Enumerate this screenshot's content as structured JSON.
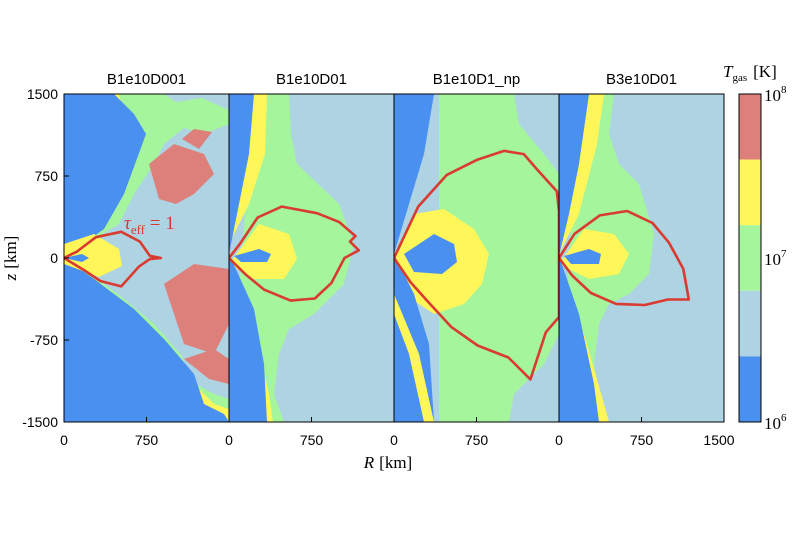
{
  "chart_data": {
    "type": "heatmap",
    "panels": [
      {
        "title": "B1e10D001",
        "tau_contour": [
          [
            0,
            0
          ],
          [
            120,
            60
          ],
          [
            290,
            190
          ],
          [
            520,
            240
          ],
          [
            690,
            150
          ],
          [
            780,
            20
          ],
          [
            880,
            0
          ],
          [
            780,
            -10
          ],
          [
            680,
            -80
          ],
          [
            520,
            -260
          ],
          [
            330,
            -210
          ],
          [
            180,
            -110
          ],
          [
            0,
            0
          ]
        ]
      },
      {
        "title": "B1e10D01",
        "tau_contour": [
          [
            0,
            0
          ],
          [
            100,
            130
          ],
          [
            260,
            370
          ],
          [
            480,
            470
          ],
          [
            800,
            410
          ],
          [
            1000,
            330
          ],
          [
            1150,
            200
          ],
          [
            1100,
            150
          ],
          [
            1180,
            70
          ],
          [
            1050,
            0
          ],
          [
            930,
            -230
          ],
          [
            780,
            -370
          ],
          [
            560,
            -390
          ],
          [
            320,
            -290
          ],
          [
            150,
            -150
          ],
          [
            0,
            0
          ]
        ]
      },
      {
        "title": "B1e10D1_np",
        "tau_contour": [
          [
            0,
            0
          ],
          [
            220,
            470
          ],
          [
            480,
            760
          ],
          [
            760,
            900
          ],
          [
            1000,
            980
          ],
          [
            1180,
            950
          ],
          [
            1300,
            810
          ],
          [
            1480,
            610
          ],
          [
            1500,
            430
          ],
          [
            1500,
            -540
          ],
          [
            1380,
            -680
          ],
          [
            1240,
            -1110
          ],
          [
            1040,
            -910
          ],
          [
            760,
            -800
          ],
          [
            520,
            -630
          ],
          [
            300,
            -390
          ],
          [
            150,
            -220
          ],
          [
            0,
            0
          ]
        ]
      },
      {
        "title": "B3e10D01",
        "tau_contour": [
          [
            0,
            0
          ],
          [
            140,
            220
          ],
          [
            370,
            390
          ],
          [
            620,
            430
          ],
          [
            850,
            320
          ],
          [
            1000,
            140
          ],
          [
            1130,
            -100
          ],
          [
            1180,
            -380
          ],
          [
            990,
            -380
          ],
          [
            780,
            -430
          ],
          [
            520,
            -420
          ],
          [
            290,
            -320
          ],
          [
            120,
            -160
          ],
          [
            0,
            0
          ]
        ]
      }
    ],
    "x_ticks": [
      "0",
      "750",
      "0",
      "750",
      "0",
      "750",
      "0",
      "750",
      "1500"
    ],
    "y_ticks": [
      "1500",
      "750",
      "0",
      "-750",
      "-1500"
    ],
    "xlim": [
      0,
      1500
    ],
    "ylim": [
      -1500,
      1500
    ],
    "xlabel_symbol": "R",
    "xlabel_unit": "[km]",
    "ylabel_symbol": "z",
    "ylabel_unit": "[km]",
    "colorbar": {
      "label_symbol": "T",
      "label_sub": "gas",
      "label_unit": "[K]",
      "tick_base": "10",
      "tick_exps": [
        "8",
        "7",
        "6"
      ],
      "levels_K": [
        "1e6",
        "3.16e6",
        "1e7",
        "3.16e7",
        "1e8"
      ],
      "colors": [
        "#4a90f0",
        "#aed4e3",
        "#a4f59c",
        "#fff65a",
        "#dd7f7b"
      ]
    },
    "annotation": {
      "symbol": "τ",
      "sub": "eff",
      "rest": " = 1",
      "color": "#d63a2f"
    }
  }
}
